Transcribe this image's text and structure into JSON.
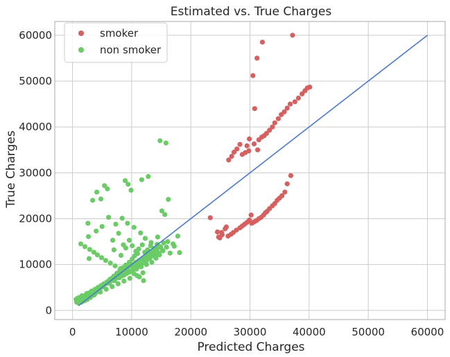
{
  "chart_data": {
    "type": "scatter",
    "title": "Estimated vs. True Charges",
    "xlabel": "Predicted Charges",
    "ylabel": "True Charges",
    "xlim": [
      -3000,
      63000
    ],
    "ylim": [
      -2000,
      63000
    ],
    "xticks": [
      0,
      10000,
      20000,
      30000,
      40000,
      50000,
      60000
    ],
    "yticks": [
      0,
      10000,
      20000,
      30000,
      40000,
      50000,
      60000
    ],
    "grid": true,
    "legend_position": "top-left",
    "colors": {
      "smoker": "#d65f5f",
      "non_smoker": "#6acc65",
      "line": "#4878d0",
      "grid": "#cccccc",
      "axes": "#aaaaaa"
    },
    "reference_line": {
      "x": [
        1000,
        60000
      ],
      "y": [
        1000,
        60000
      ]
    },
    "series": [
      {
        "name": "smoker",
        "color": "#d65f5f",
        "x": [
          37200,
          32100,
          31200,
          30500,
          40100,
          39700,
          39300,
          38800,
          38200,
          37600,
          36800,
          36300,
          35800,
          35300,
          34800,
          34200,
          33800,
          33300,
          32800,
          32400,
          32000,
          31500,
          30700,
          29900,
          29500,
          29800,
          29200,
          28700,
          28300,
          27800,
          27300,
          26900,
          26400,
          36900,
          36300,
          35900,
          35400,
          35000,
          34600,
          34200,
          33800,
          33300,
          32900,
          32600,
          32300,
          31900,
          31500,
          31100,
          30700,
          30300,
          29900,
          29500,
          29100,
          28700,
          28300,
          27700,
          27200,
          26800,
          26300,
          25800,
          25300,
          24900,
          24500,
          23300,
          30800,
          31300,
          30200,
          26000,
          25200,
          24700
        ],
        "y": [
          60000,
          58500,
          55000,
          51200,
          48700,
          48500,
          47900,
          47200,
          46300,
          45500,
          45000,
          44100,
          43300,
          42700,
          41800,
          40900,
          40000,
          39300,
          38600,
          38100,
          37800,
          37200,
          36300,
          37400,
          35900,
          34800,
          34400,
          34000,
          36200,
          35200,
          34500,
          33600,
          32800,
          29400,
          27600,
          25800,
          25000,
          24500,
          24000,
          23300,
          22800,
          22200,
          21600,
          21300,
          20800,
          20300,
          20000,
          19600,
          19300,
          19000,
          19700,
          19200,
          18800,
          18400,
          18000,
          17500,
          17000,
          16600,
          16200,
          17800,
          16500,
          15800,
          17100,
          20200,
          44000,
          35000,
          20800,
          18200,
          17000,
          16000
        ]
      },
      {
        "name": "non smoker",
        "color": "#6acc65",
        "x": [
          14800,
          15800,
          12800,
          11700,
          8900,
          9400,
          9900,
          5400,
          5900,
          4100,
          4800,
          3400,
          2600,
          2800,
          6100,
          7300,
          7800,
          8400,
          9300,
          10400,
          11500,
          12300,
          13300,
          14400,
          15100,
          16200,
          15600,
          2700,
          4000,
          5000,
          6800,
          7000,
          8600,
          8200,
          9000,
          9600,
          10100,
          10700,
          11200,
          11800,
          12200,
          12700,
          13200,
          13800,
          14300,
          14900,
          15400,
          16100,
          17000,
          17800,
          18100,
          12400,
          12900,
          13500,
          14100,
          14700,
          15300,
          15900,
          16500,
          17200,
          11000,
          10500,
          10100,
          9600,
          9000,
          8500,
          8000,
          7500,
          7000,
          6500,
          6000,
          5500,
          5000,
          4500,
          4000,
          3500,
          3000,
          2500,
          2000,
          1500,
          1000,
          800,
          1200,
          1800,
          2200,
          2800,
          3300,
          3800,
          4300,
          4800,
          5300,
          5800,
          6300,
          6800,
          7300,
          7800,
          8300,
          8800,
          9300,
          9800,
          10300,
          10800,
          11300,
          11800,
          12300,
          12800,
          13300,
          13800,
          14300,
          14800,
          10600,
          11400,
          12100,
          12600,
          13100,
          13700,
          14200,
          11900,
          10900,
          9700,
          8700,
          7700,
          6700,
          5700,
          4700,
          3700,
          2700,
          1700,
          700,
          1300,
          2300,
          3100,
          3900,
          4600,
          5200,
          6200,
          7100,
          7900,
          8700,
          9500,
          10200,
          11000,
          11700,
          12400,
          13000,
          13600,
          14600,
          15200,
          12000,
          11300,
          10400,
          9200,
          8100,
          7200,
          6400,
          5600,
          4900,
          4200,
          3600,
          2900,
          2100,
          1400,
          900,
          600,
          1100,
          1600,
          2400,
          3200,
          4400,
          5100,
          5800,
          6600,
          7400,
          8300,
          9100,
          9900,
          10800,
          11600,
          12500,
          13400
        ],
        "y": [
          37000,
          36500,
          29200,
          28500,
          28300,
          27500,
          26200,
          27200,
          26500,
          25800,
          24300,
          24000,
          19000,
          11300,
          20300,
          18800,
          16800,
          20100,
          19000,
          18100,
          16900,
          15700,
          14800,
          16000,
          21700,
          24200,
          20900,
          16100,
          17300,
          18300,
          15300,
          13200,
          14300,
          12000,
          13600,
          15300,
          14100,
          12900,
          13400,
          14300,
          12700,
          13200,
          14100,
          13500,
          14400,
          13800,
          14700,
          15000,
          14500,
          16200,
          12600,
          11600,
          12200,
          12800,
          11400,
          12100,
          13000,
          13800,
          12500,
          14000,
          12400,
          11900,
          11200,
          10500,
          9900,
          9300,
          8700,
          8100,
          7500,
          6900,
          6300,
          5700,
          5100,
          4500,
          3900,
          3300,
          2800,
          2400,
          2100,
          1800,
          1600,
          2600,
          2200,
          2900,
          3300,
          3800,
          4200,
          4600,
          5000,
          5400,
          5800,
          6200,
          6700,
          7100,
          7500,
          7900,
          8400,
          8800,
          9200,
          9700,
          10100,
          10500,
          10900,
          11300,
          11800,
          12200,
          12600,
          13000,
          13400,
          13900,
          9500,
          10100,
          10700,
          11100,
          11500,
          11900,
          12300,
          8200,
          7600,
          7000,
          6400,
          5800,
          5200,
          4600,
          4000,
          3400,
          2800,
          2200,
          1800,
          2500,
          3000,
          3600,
          4100,
          4700,
          5300,
          5900,
          6500,
          7100,
          7700,
          8300,
          8900,
          9500,
          10100,
          10700,
          11300,
          11900,
          12500,
          13100,
          6500,
          7300,
          8000,
          8500,
          9100,
          9700,
          10300,
          10900,
          11500,
          12100,
          12700,
          13300,
          13900,
          14500,
          2000,
          2400,
          2800,
          3200,
          3700,
          4200,
          5000,
          5500,
          6000,
          6500,
          7000,
          7500,
          8000,
          8500,
          9000,
          9500,
          10000,
          10500
        ]
      }
    ]
  }
}
